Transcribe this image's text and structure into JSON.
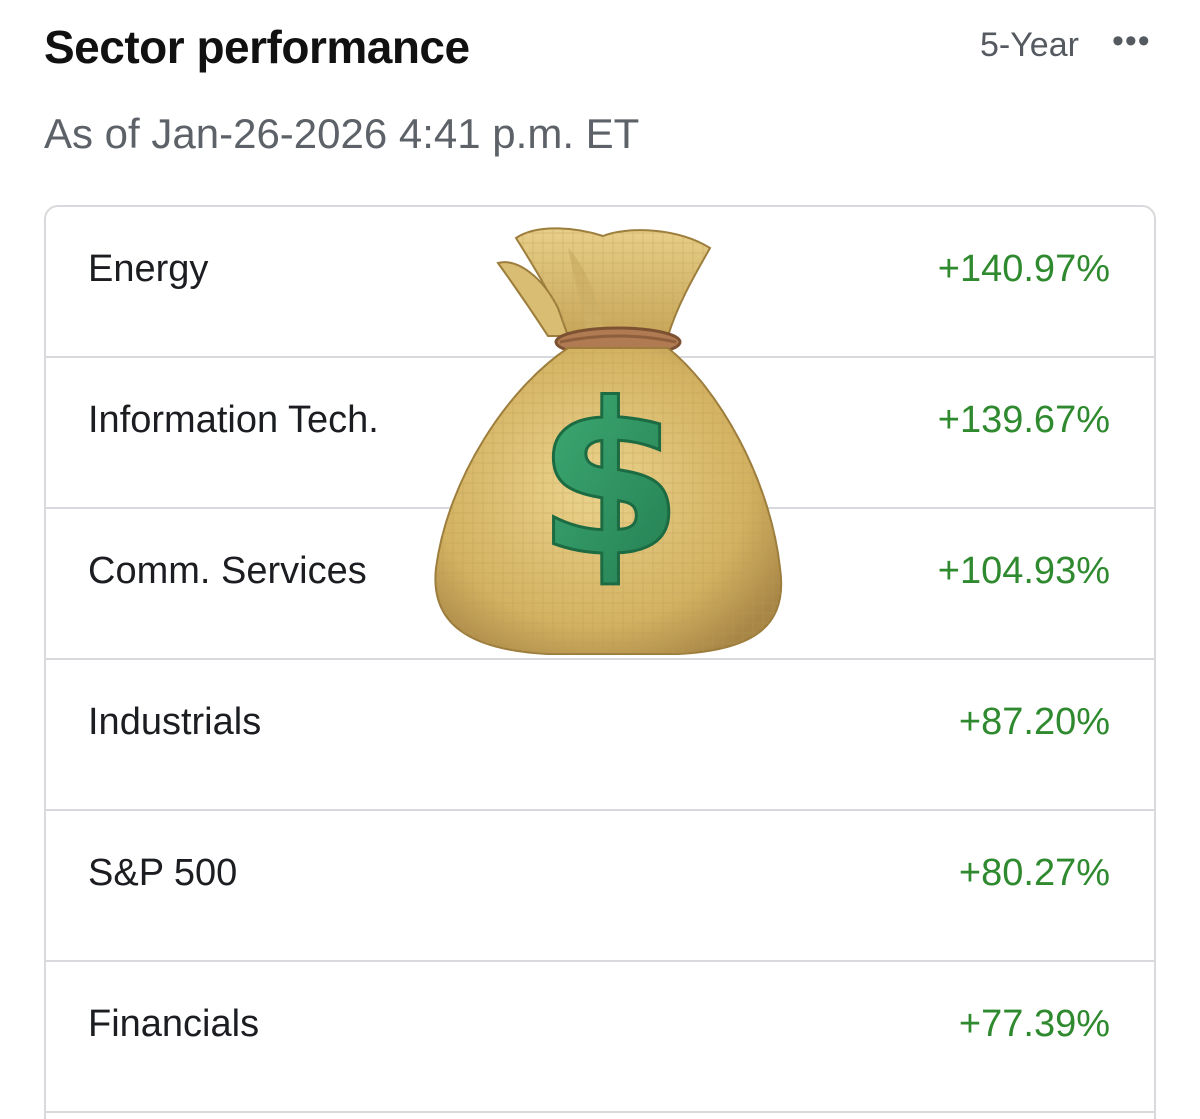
{
  "header": {
    "title": "Sector performance",
    "period": "5-Year",
    "more_icon": "more-horizontal-icon"
  },
  "subtitle": "As of Jan-26-2026 4:41 p.m. ET",
  "rows": [
    {
      "name": "Energy",
      "value": "+140.97%"
    },
    {
      "name": "Information Tech.",
      "value": "+139.67%"
    },
    {
      "name": "Comm. Services",
      "value": "+104.93%"
    },
    {
      "name": "Industrials",
      "value": "+87.20%"
    },
    {
      "name": "S&P 500",
      "value": "+80.27%"
    },
    {
      "name": "Financials",
      "value": "+77.39%"
    }
  ],
  "overlay": {
    "icon": "money-bag-icon"
  },
  "colors": {
    "positive": "#2f8a2f",
    "title": "#111111",
    "muted": "#5d6268",
    "border": "#d7d9dc",
    "bag": "#d9bb6c",
    "dollar": "#2e9a63"
  }
}
